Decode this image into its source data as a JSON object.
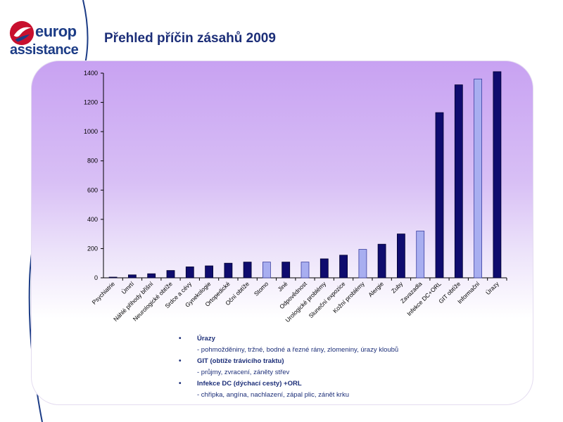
{
  "logo": {
    "word1": "europ",
    "word2": "assistance"
  },
  "title": "Přehled příčin zásahů 2009",
  "colors": {
    "bar_dark": "#0f0c6e",
    "bar_light": "#a8aef0",
    "text": "#1c2e78"
  },
  "chart_data": {
    "type": "bar",
    "title": "",
    "xlabel": "",
    "ylabel": "",
    "ylim": [
      0,
      1400
    ],
    "yticks": [
      0,
      200,
      400,
      600,
      800,
      1000,
      1200,
      1400
    ],
    "grid": false,
    "categories": [
      "Psychiatrie",
      "Úmrtí",
      "Náhlé přihody břišní",
      "Neurologické obtíže",
      "Srdce a cévy",
      "Gynekologie",
      "Ortopedické",
      "Oční obtíže",
      "Stomo",
      "Jiné",
      "Odpovědnost",
      "Urologické problémy",
      "Sluneční expozice",
      "Kožní problémy",
      "Alergie",
      "Zuby",
      "Zavazadla",
      "Infekce DC+ORL",
      "GIT obtíže",
      "Informační",
      "Úrazy"
    ],
    "values": [
      5,
      20,
      28,
      50,
      75,
      82,
      100,
      108,
      108,
      108,
      108,
      130,
      155,
      195,
      230,
      300,
      320,
      1130,
      1320,
      1360,
      1410
    ],
    "bar_style": [
      "dark",
      "dark",
      "dark",
      "dark",
      "dark",
      "dark",
      "dark",
      "dark",
      "light",
      "dark",
      "light",
      "dark",
      "dark",
      "light",
      "dark",
      "dark",
      "light",
      "dark",
      "dark",
      "light",
      "dark"
    ]
  },
  "bullets": [
    {
      "head": "Úrazy",
      "sub": "- pohmožděniny, tržné, bodné a řezné rány, zlomeniny, úrazy kloubů"
    },
    {
      "head": "GIT (obtíže trávicího traktu)",
      "sub": "- průjmy, zvracení, záněty střev"
    },
    {
      "head": "Infekce DC (dýchací cesty) +ORL",
      "sub": "- chřipka, angína, nachlazení, zápal plic, zánět krku"
    }
  ]
}
